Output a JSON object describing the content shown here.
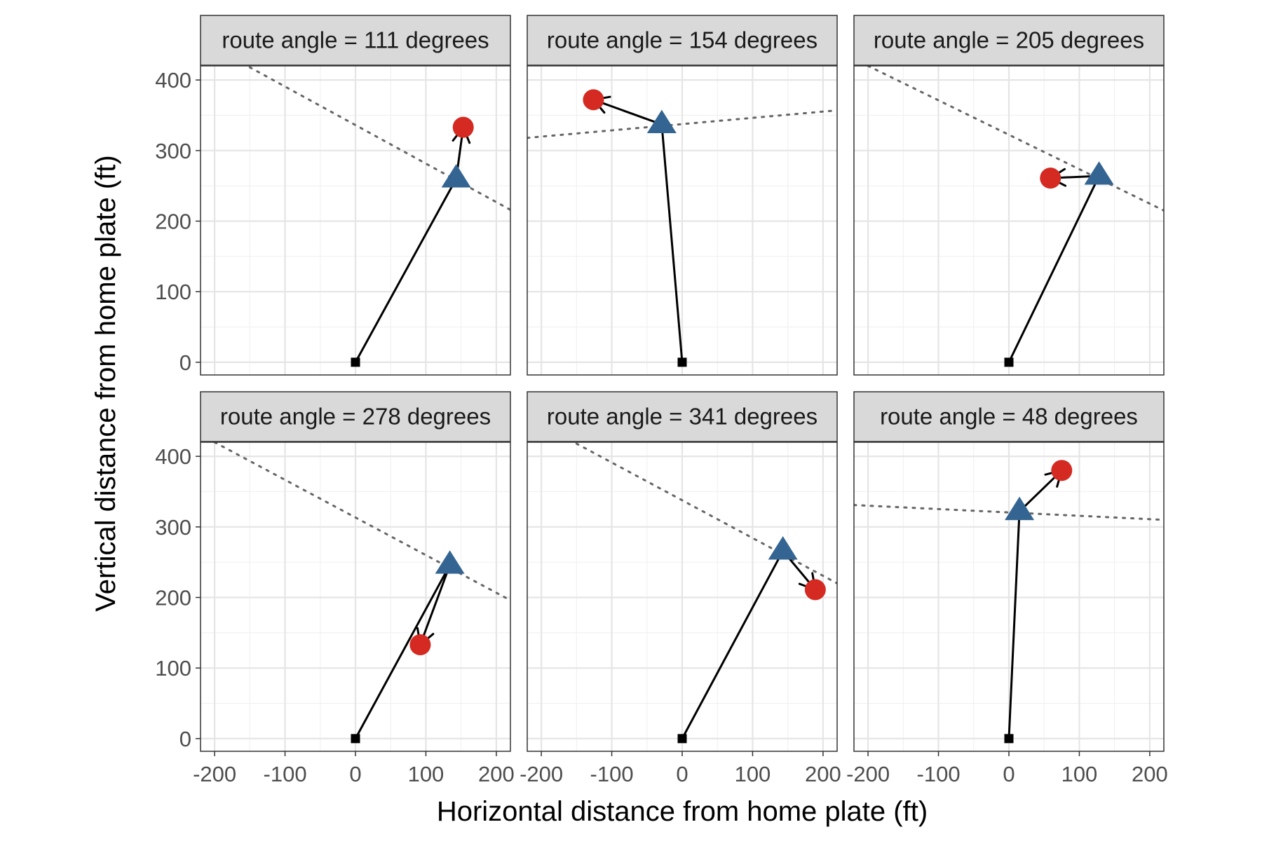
{
  "chart_data": {
    "type": "faceted-scatter-line",
    "facet_label_template": "route angle = {angle} degrees",
    "xlabel": "Horizontal distance from home plate (ft)",
    "ylabel": "Vertical distance from home plate (ft)",
    "xlim": [
      -220,
      220
    ],
    "ylim": [
      -18,
      420
    ],
    "x_ticks": [
      -200,
      -100,
      0,
      100,
      200
    ],
    "y_ticks": [
      0,
      100,
      200,
      300,
      400
    ],
    "x_tick_labels": [
      "-200",
      "-100",
      "0",
      "100",
      "200"
    ],
    "y_tick_labels": [
      "0",
      "100",
      "200",
      "300",
      "400"
    ],
    "grid": true,
    "layout": {
      "rows": 2,
      "cols": 3
    },
    "colors": {
      "circle": "#d42a22",
      "triangle": "#346592",
      "square": "#000000",
      "fence": "#666666"
    },
    "markers": {
      "start": "square",
      "mid": "triangle",
      "end": "circle"
    },
    "panels": [
      {
        "label": "route angle = 111 degrees",
        "angle": 111,
        "start": [
          0,
          0
        ],
        "triangle": [
          143,
          260
        ],
        "circle": [
          153,
          333
        ],
        "fence": [
          [
            -150,
            418
          ],
          [
            220,
            216
          ]
        ]
      },
      {
        "label": "route angle = 154 degrees",
        "angle": 154,
        "start": [
          0,
          0
        ],
        "triangle": [
          -29,
          337
        ],
        "circle": [
          -126,
          372
        ],
        "fence": [
          [
            -220,
            318
          ],
          [
            220,
            357
          ]
        ]
      },
      {
        "label": "route angle = 205 degrees",
        "angle": 205,
        "start": [
          0,
          0
        ],
        "triangle": [
          128,
          264
        ],
        "circle": [
          59,
          261
        ],
        "fence": [
          [
            -200,
            420
          ],
          [
            220,
            215
          ]
        ]
      },
      {
        "label": "route angle = 278 degrees",
        "angle": 278,
        "start": [
          0,
          0
        ],
        "triangle": [
          134,
          246
        ],
        "circle": [
          92,
          133
        ],
        "fence": [
          [
            -200,
            420
          ],
          [
            220,
            196
          ]
        ]
      },
      {
        "label": "route angle = 341 degrees",
        "angle": 341,
        "start": [
          0,
          0
        ],
        "triangle": [
          143,
          266
        ],
        "circle": [
          189,
          211
        ],
        "fence": [
          [
            -150,
            418
          ],
          [
            220,
            220
          ]
        ]
      },
      {
        "label": "route angle = 48 degrees",
        "angle": 48,
        "start": [
          0,
          0
        ],
        "triangle": [
          15,
          322
        ],
        "circle": [
          75,
          380
        ],
        "fence": [
          [
            -220,
            331
          ],
          [
            220,
            310
          ]
        ]
      }
    ]
  }
}
